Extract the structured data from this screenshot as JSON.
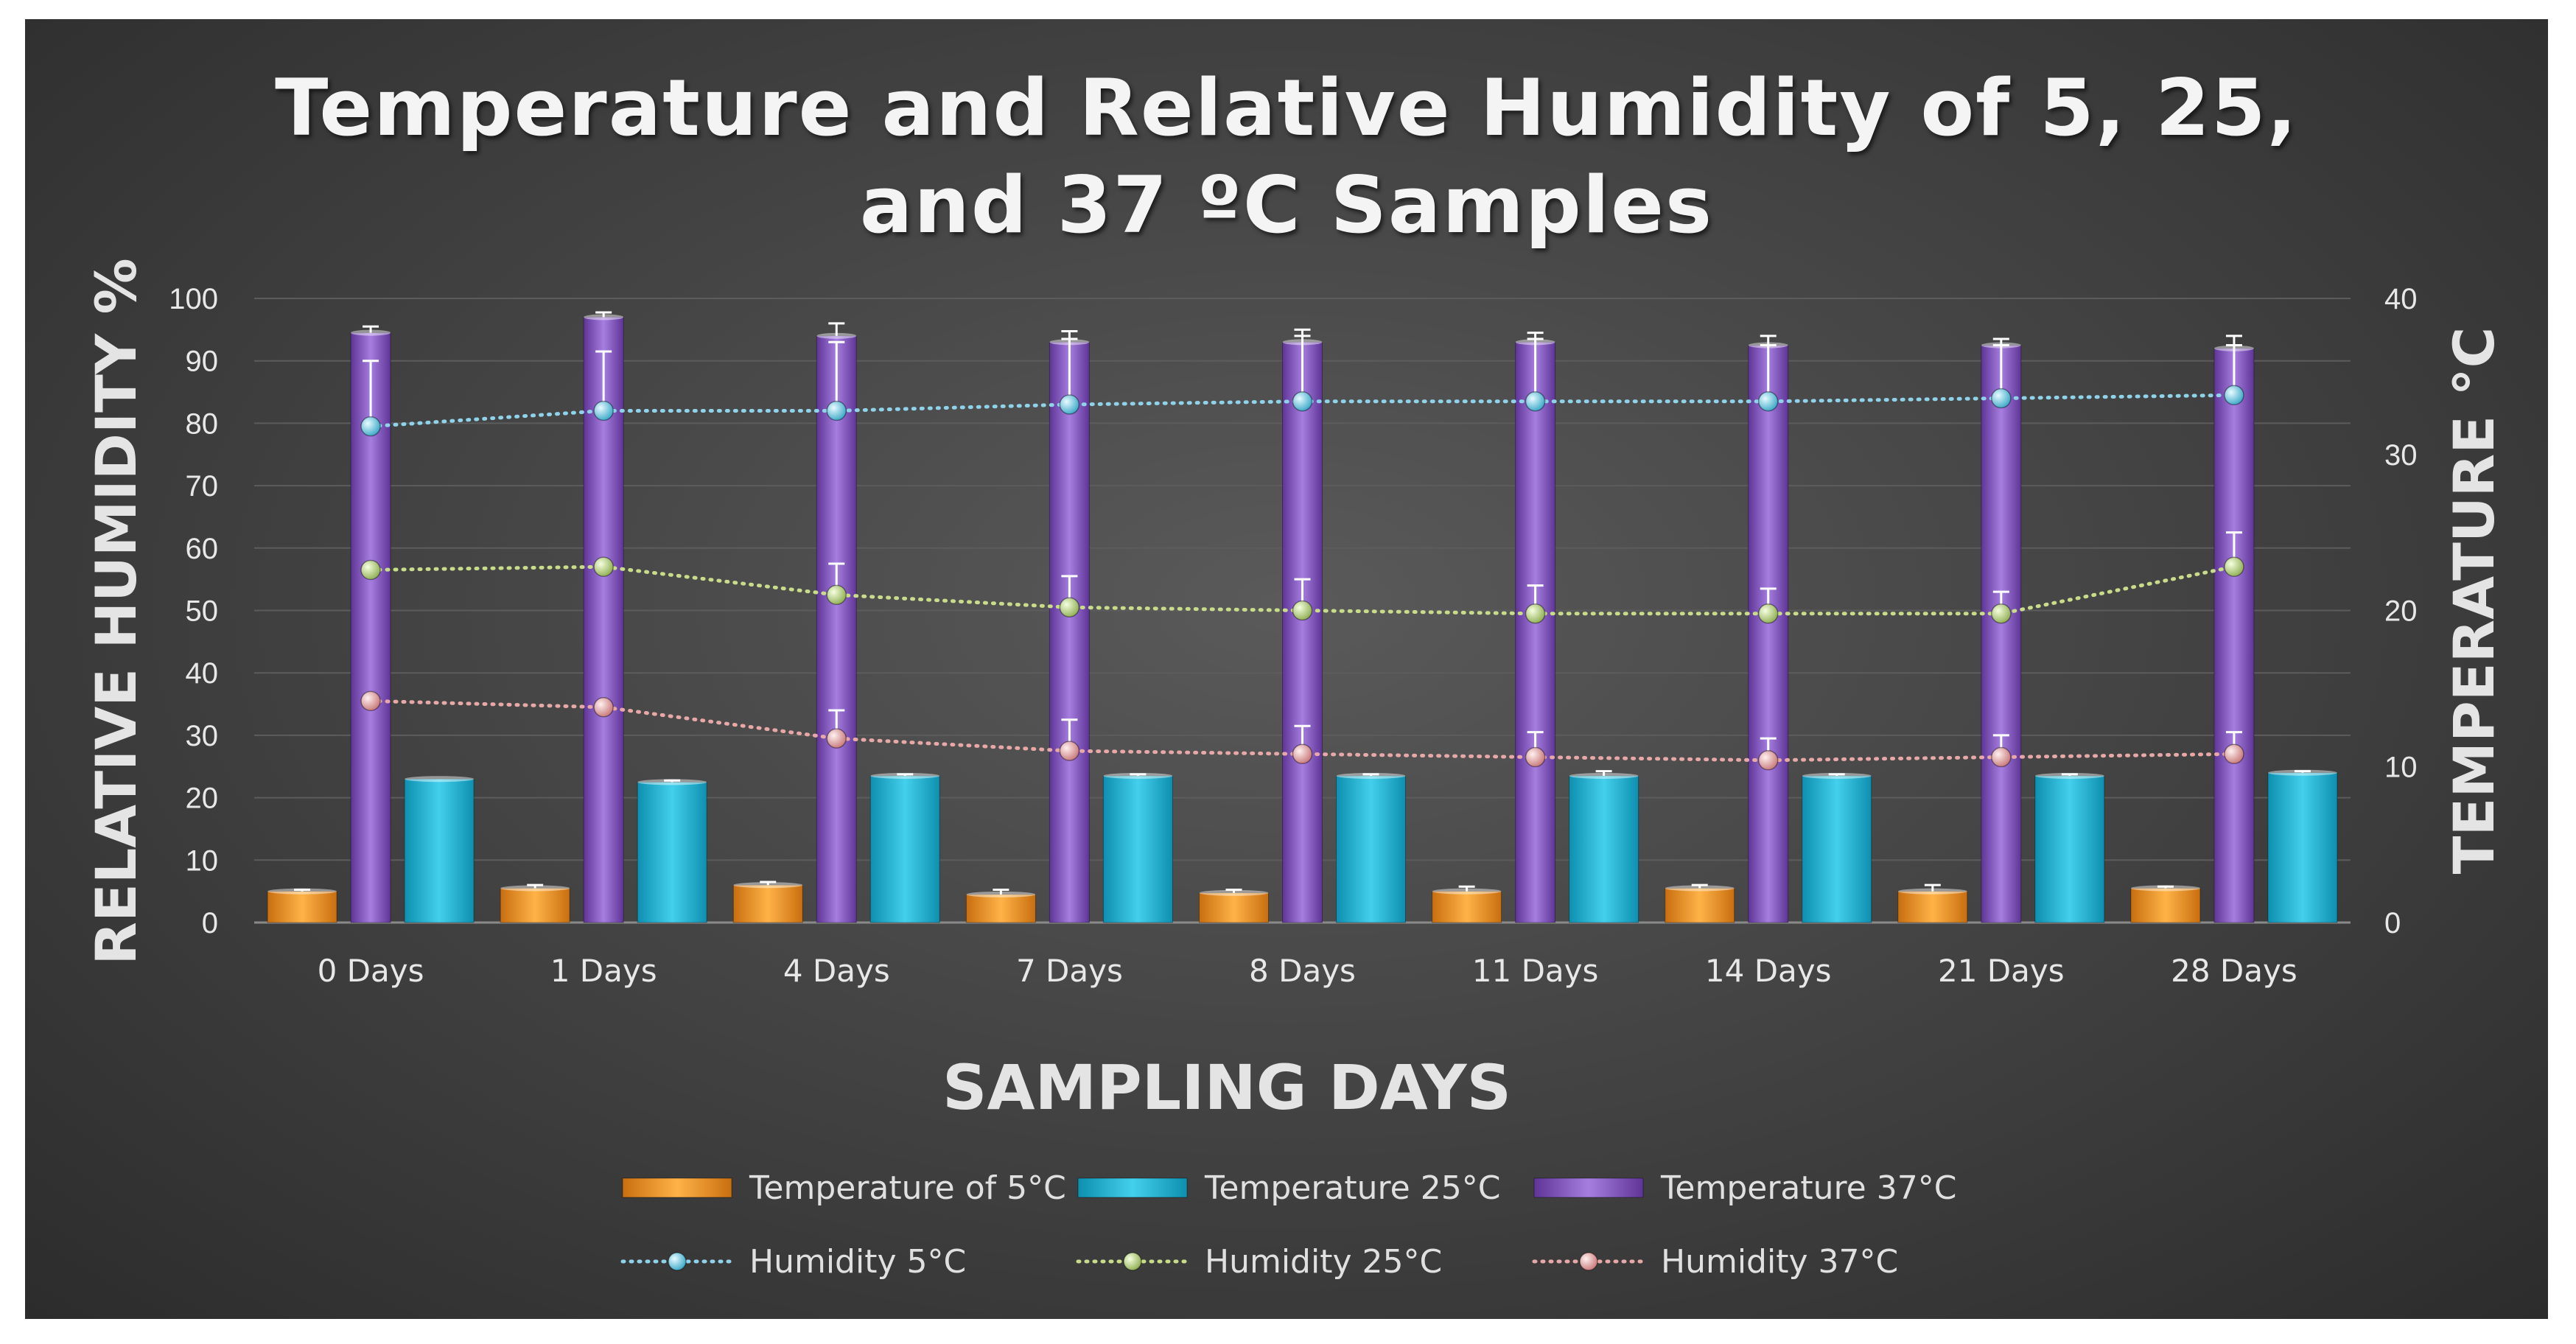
{
  "chart_data": {
    "type": "bar",
    "title_lines": [
      "Temperature and Relative Humidity of 5, 25,",
      "and 37 ºC Samples"
    ],
    "xlabel": "SAMPLING DAYS",
    "ylabel_left": "RELATIVE HUMIDITY %",
    "ylabel_right": "TEMPERATURE °C",
    "categories": [
      "0 Days",
      "1 Days",
      "4 Days",
      "7 Days",
      "8 Days",
      "11 Days",
      "14 Days",
      "21 Days",
      "28 Days"
    ],
    "ylim_left": [
      0,
      100
    ],
    "yticks_left": [
      "0",
      "10",
      "20",
      "30",
      "40",
      "50",
      "60",
      "70",
      "80",
      "90",
      "100"
    ],
    "ylim_right": [
      0,
      40
    ],
    "yticks_right": [
      "0",
      "10",
      "20",
      "30",
      "40"
    ],
    "grid": true,
    "bar_series": [
      {
        "name": "Temperature of  5°C",
        "axis": "right",
        "color": "#f0a030",
        "values": [
          2.0,
          2.2,
          2.4,
          1.8,
          1.9,
          2.0,
          2.2,
          2.0,
          2.2
        ],
        "errors": [
          0.1,
          0.2,
          0.2,
          0.3,
          0.2,
          0.3,
          0.2,
          0.4,
          0.1
        ]
      },
      {
        "name": "Temperature 25°C",
        "axis": "right",
        "color": "#29b6d6",
        "values": [
          9.2,
          9.0,
          9.4,
          9.4,
          9.4,
          9.4,
          9.4,
          9.4,
          9.6
        ],
        "errors": [
          0.0,
          0.1,
          0.1,
          0.1,
          0.1,
          0.3,
          0.1,
          0.1,
          0.1
        ]
      },
      {
        "name": "Temperature 37°C",
        "axis": "right",
        "color": "#8a5cc4",
        "values": [
          37.8,
          38.8,
          37.6,
          37.2,
          37.2,
          37.2,
          37.0,
          37.0,
          36.8
        ],
        "errors": [
          0.4,
          0.3,
          0.8,
          0.7,
          0.8,
          0.6,
          0.6,
          0.4,
          0.8
        ]
      }
    ],
    "line_series": [
      {
        "name": "Humidity 5°C",
        "axis": "left",
        "color": "#8fd3ea",
        "values": [
          79.5,
          82.0,
          82.0,
          83.0,
          83.5,
          83.5,
          83.5,
          84.0,
          84.5
        ],
        "errors": [
          10.5,
          9.5,
          11.0,
          10.5,
          10.5,
          10.0,
          9.0,
          8.5,
          8.0
        ]
      },
      {
        "name": "Humidity 25°C",
        "axis": "left",
        "color": "#c8dc8a",
        "values": [
          56.5,
          57.0,
          52.5,
          50.5,
          50.0,
          49.5,
          49.5,
          49.5,
          57.0
        ],
        "errors": [
          0.0,
          0.0,
          5.0,
          5.0,
          5.0,
          4.5,
          4.0,
          3.5,
          5.5
        ]
      },
      {
        "name": "Humidity 37°C",
        "axis": "left",
        "color": "#e8a8a8",
        "values": [
          35.5,
          34.5,
          29.5,
          27.5,
          27.0,
          26.5,
          26.0,
          26.5,
          27.0
        ],
        "errors": [
          0.0,
          0.0,
          4.5,
          5.0,
          4.5,
          4.0,
          3.5,
          3.5,
          3.5
        ]
      }
    ]
  }
}
